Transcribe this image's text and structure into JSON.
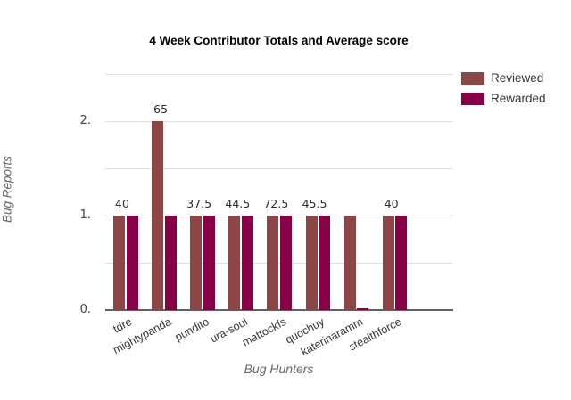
{
  "title": "4 Week Contributor Totals and Average score",
  "chart_data": {
    "type": "bar",
    "categories": [
      "tdre",
      "mightypanda",
      "pundito",
      "ura-soul",
      "mattockfs",
      "quochuy",
      "katerinaramm",
      "stealthforce"
    ],
    "series": [
      {
        "name": "Reviewed",
        "color": "#8d4646",
        "values": [
          1,
          2,
          1,
          1,
          1,
          1,
          1,
          1
        ]
      },
      {
        "name": "Rewarded",
        "color": "#880045",
        "values": [
          1,
          1,
          1,
          1,
          1,
          1,
          0,
          1
        ]
      }
    ],
    "annotations": [
      "40",
      "65",
      "37.5",
      "44.5",
      "72.5",
      "45.5",
      "",
      "40"
    ],
    "title": "4 Week Contributor Totals and Average score",
    "xlabel": "Bug Hunters",
    "ylabel": "Bug Reports",
    "ylim": [
      0,
      2.5
    ],
    "yticks": [
      {
        "value": 0,
        "label": "0."
      },
      {
        "value": 1,
        "label": "1."
      },
      {
        "value": 2,
        "label": "2."
      }
    ],
    "gridline_values": [
      0.5,
      1,
      1.5,
      2,
      2.5
    ],
    "grid": true,
    "legend_position": "top-right"
  },
  "colors": {
    "background": "#ffffff",
    "gridline": "#e0e0e0",
    "axis_line": "#616161",
    "tick_text": "#424242",
    "axis_title_text": "#666666",
    "title_text": "#000000"
  }
}
